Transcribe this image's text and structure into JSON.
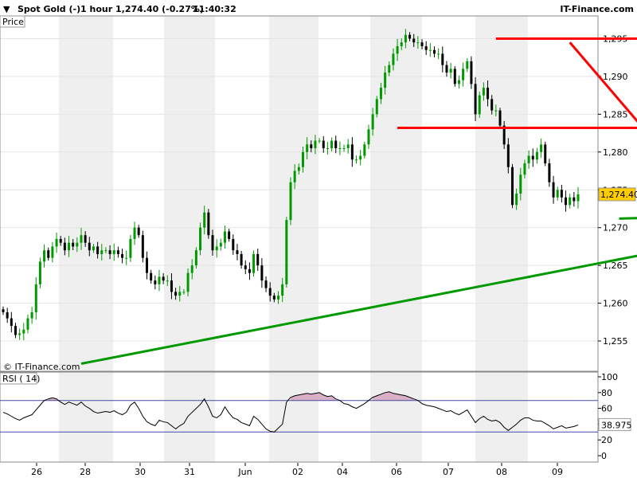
{
  "header": {
    "instrument": "Spot Gold (-)",
    "timeframe": "1 hour",
    "price": "1,274.40 (-0.27%)",
    "time": "11:40:32",
    "brand": "IT-Finance.com"
  },
  "price_pane": {
    "label": "Price",
    "watermark": "© IT-Finance.com",
    "last_price_label": "1,274.40"
  },
  "rsi_pane": {
    "label": "RSI ( 14)",
    "last_value_label": "38.975"
  },
  "colors": {
    "up_candle": "#009900",
    "down_candle": "#000000",
    "resistance": "#ff0000",
    "support": "#009900",
    "rsi_line": "#000000",
    "rsi_bands": "#4a4aa0",
    "rsi_overbought_fill": "#d8b0c8",
    "last_price_tag": "#ffcc00",
    "band_shade": "#efefef"
  },
  "chart_data": [
    {
      "type": "candlestick",
      "title": "Spot Gold (-) 1 hour",
      "ylabel": "Price",
      "ylim": [
        1251,
        1298
      ],
      "yticks": [
        1255,
        1260,
        1265,
        1270,
        1275,
        1280,
        1285,
        1290,
        1295
      ],
      "ytick_labels": [
        "1,255",
        "1,260",
        "1,265",
        "1,270",
        "1,275",
        "1,280",
        "1,285",
        "1,290",
        "1,295"
      ],
      "x_tick_labels": [
        "26",
        "28",
        "30",
        "31",
        "Jun",
        "02",
        "04",
        "06",
        "07",
        "08",
        "09"
      ],
      "last_price": 1274.4,
      "series": [
        {
          "values": [
            1258.8,
            1258.0,
            1257.0,
            1255.8,
            1256.0,
            1256.5,
            1258.0,
            1258.8,
            1262.5,
            1265.5,
            1267.0,
            1266.0,
            1267.5,
            1268.5,
            1268.0,
            1267.0,
            1268.0,
            1267.5,
            1268.0,
            1269.0,
            1268.0,
            1267.0,
            1267.5,
            1266.5,
            1267.0,
            1267.0,
            1266.5,
            1267.0,
            1266.5,
            1266.0,
            1266.0,
            1268.5,
            1270.0,
            1269.0,
            1266.0,
            1264.0,
            1263.0,
            1262.5,
            1263.5,
            1263.0,
            1263.0,
            1261.5,
            1261.0,
            1261.5,
            1261.5,
            1264.0,
            1265.0,
            1267.0,
            1270.0,
            1272.0,
            1269.0,
            1267.0,
            1267.5,
            1268.0,
            1269.5,
            1268.5,
            1267.0,
            1266.5,
            1265.0,
            1264.5,
            1264.0,
            1266.5,
            1265.0,
            1263.0,
            1262.0,
            1261.0,
            1260.5,
            1261.0,
            1262.5,
            1271.0,
            1276.0,
            1277.5,
            1278.0,
            1280.0,
            1281.0,
            1280.5,
            1281.5,
            1281.5,
            1280.5,
            1280.5,
            1281.5,
            1280.5,
            1280.5,
            1280.5,
            1281.0,
            1279.0,
            1279.0,
            1279.5,
            1281.0,
            1283.0,
            1285.0,
            1287.0,
            1288.5,
            1290.5,
            1291.5,
            1293.0,
            1294.0,
            1294.5,
            1295.5,
            1295.0,
            1294.5,
            1294.5,
            1294.0,
            1293.5,
            1293.5,
            1293.0,
            1293.0,
            1291.5,
            1290.5,
            1291.0,
            1289.0,
            1289.5,
            1291.0,
            1292.0,
            1289.0,
            1285.0,
            1287.5,
            1288.5,
            1287.0,
            1285.5,
            1285.5,
            1283.5,
            1281.0,
            1278.0,
            1273.0,
            1274.5,
            1277.0,
            1278.5,
            1279.5,
            1279.0,
            1280.0,
            1281.0,
            1278.5,
            1276.0,
            1274.0,
            1275.0,
            1274.0,
            1273.0,
            1274.0,
            1273.5,
            1274.4
          ]
        }
      ],
      "trendlines": [
        {
          "name": "resistance-top",
          "color": "#ff0000",
          "from": [
            120,
            1295.0
          ],
          "to": [
            167,
            1295.0
          ]
        },
        {
          "name": "resistance-mid",
          "color": "#ff0000",
          "from": [
            96,
            1283.2
          ],
          "to": [
            167,
            1283.2
          ]
        },
        {
          "name": "resistance-downtrend",
          "color": "#ff0000",
          "from": [
            138,
            1294.5
          ],
          "to": [
            164,
            1278.0
          ]
        },
        {
          "name": "support-bottom",
          "color": "#009900",
          "from": [
            150,
            1271.2
          ],
          "to": [
            164,
            1271.4
          ]
        },
        {
          "name": "support-uptrend",
          "color": "#009900",
          "from": [
            19,
            1252.0
          ],
          "to": [
            168,
            1267.7
          ]
        }
      ]
    },
    {
      "type": "line",
      "title": "RSI ( 14)",
      "ylim": [
        0,
        100
      ],
      "yticks": [
        0,
        20,
        40,
        60,
        80,
        100
      ],
      "ytick_labels": [
        "0",
        "20",
        "40",
        "60",
        "80",
        "100"
      ],
      "bands": [
        30,
        70
      ],
      "last_value": 38.975,
      "series": [
        {
          "name": "RSI ( 14)",
          "values": [
            55.0,
            53.0,
            50.0,
            47.0,
            45.0,
            48.0,
            50.0,
            52.0,
            58.0,
            64.0,
            70.0,
            72.0,
            73.5,
            72.0,
            68.0,
            65.0,
            68.0,
            66.0,
            64.0,
            68.0,
            63.0,
            60.0,
            56.0,
            54.0,
            55.0,
            56.0,
            55.0,
            57.0,
            54.0,
            52.0,
            55.0,
            64.0,
            68.0,
            60.0,
            50.0,
            43.0,
            40.0,
            38.0,
            45.0,
            43.0,
            42.0,
            38.0,
            34.0,
            38.0,
            41.0,
            50.0,
            55.0,
            60.0,
            65.0,
            72.0,
            62.0,
            50.0,
            48.0,
            52.0,
            62.0,
            54.0,
            48.0,
            46.0,
            42.0,
            40.0,
            38.0,
            50.0,
            46.0,
            40.0,
            34.0,
            31.0,
            30.0,
            35.0,
            40.0,
            68.0,
            74.0,
            76.0,
            77.0,
            78.0,
            79.0,
            78.0,
            79.0,
            80.0,
            77.0,
            75.0,
            76.0,
            72.0,
            70.0,
            66.0,
            65.0,
            62.0,
            60.0,
            63.0,
            66.0,
            70.0,
            74.0,
            76.0,
            78.0,
            80.0,
            81.0,
            79.0,
            78.0,
            77.0,
            76.0,
            74.0,
            72.0,
            70.0,
            66.0,
            64.0,
            63.0,
            62.0,
            60.0,
            58.0,
            56.0,
            57.0,
            54.0,
            52.0,
            55.0,
            58.0,
            50.0,
            42.0,
            47.0,
            50.0,
            46.0,
            44.0,
            45.0,
            42.0,
            36.0,
            32.0,
            36.0,
            40.0,
            45.0,
            48.0,
            48.0,
            45.0,
            44.0,
            44.0,
            41.0,
            38.0,
            34.0,
            36.0,
            38.0,
            35.0,
            36.0,
            37.0,
            38.975
          ]
        }
      ]
    }
  ]
}
